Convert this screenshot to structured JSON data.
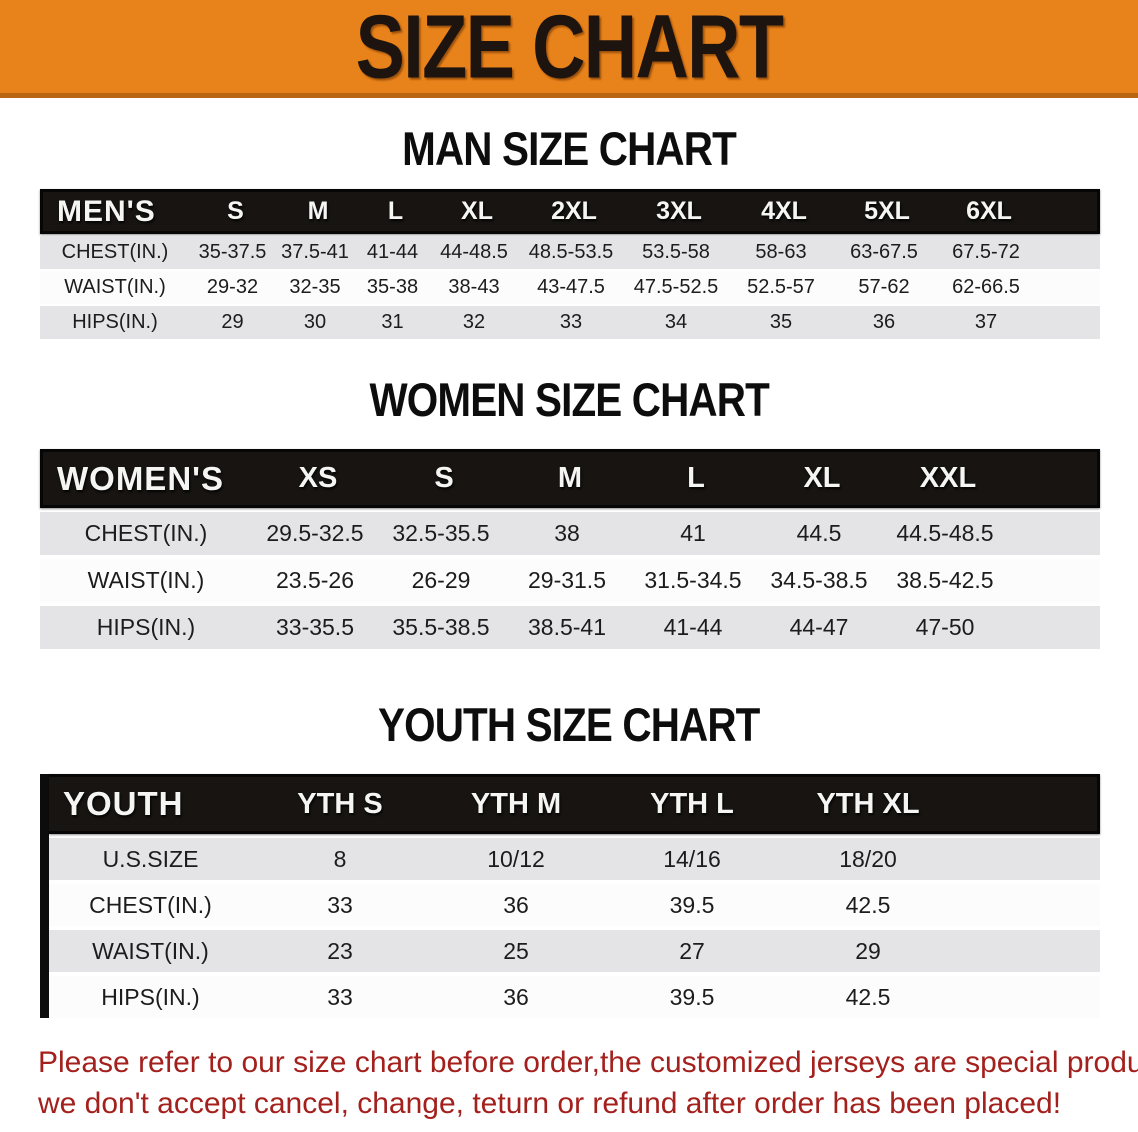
{
  "banner": {
    "title": "SIZE CHART"
  },
  "colors": {
    "banner_bg": "#e8821a",
    "banner_edge": "#b96512",
    "header_bar": "#171411",
    "row_stripe": "#e4e4e6",
    "disclaimer_red": "#a3201d"
  },
  "sections": [
    {
      "heading": "MAN SIZE CHART",
      "table": {
        "corner": "MEN'S",
        "columns": [
          "S",
          "M",
          "L",
          "XL",
          "2XL",
          "3XL",
          "4XL",
          "5XL",
          "6XL"
        ],
        "rows": [
          {
            "label": "CHEST(IN.)",
            "values": [
              "35-37.5",
              "37.5-41",
              "41-44",
              "44-48.5",
              "48.5-53.5",
              "53.5-58",
              "58-63",
              "63-67.5",
              "67.5-72"
            ]
          },
          {
            "label": "WAIST(IN.)",
            "values": [
              "29-32",
              "32-35",
              "35-38",
              "38-43",
              "43-47.5",
              "47.5-52.5",
              "52.5-57",
              "57-62",
              "62-66.5"
            ]
          },
          {
            "label": "HIPS(IN.)",
            "values": [
              "29",
              "30",
              "31",
              "32",
              "33",
              "34",
              "35",
              "36",
              "37"
            ]
          }
        ]
      }
    },
    {
      "heading": "WOMEN SIZE CHART",
      "table": {
        "corner": "WOMEN'S",
        "columns": [
          "XS",
          "S",
          "M",
          "L",
          "XL",
          "XXL"
        ],
        "rows": [
          {
            "label": "CHEST(IN.)",
            "values": [
              "29.5-32.5",
              "32.5-35.5",
              "38",
              "41",
              "44.5",
              "44.5-48.5"
            ]
          },
          {
            "label": "WAIST(IN.)",
            "values": [
              "23.5-26",
              "26-29",
              "29-31.5",
              "31.5-34.5",
              "34.5-38.5",
              "38.5-42.5"
            ]
          },
          {
            "label": "HIPS(IN.)",
            "values": [
              "33-35.5",
              "35.5-38.5",
              "38.5-41",
              "41-44",
              "44-47",
              "47-50"
            ]
          }
        ]
      }
    },
    {
      "heading": "YOUTH SIZE CHART",
      "table": {
        "corner": "YOUTH",
        "columns": [
          "YTH S",
          "YTH M",
          "YTH L",
          "YTH XL"
        ],
        "rows": [
          {
            "label": "U.S.SIZE",
            "values": [
              "8",
              "10/12",
              "14/16",
              "18/20"
            ]
          },
          {
            "label": "CHEST(IN.)",
            "values": [
              "33",
              "36",
              "39.5",
              "42.5"
            ]
          },
          {
            "label": "WAIST(IN.)",
            "values": [
              "23",
              "25",
              "27",
              "29"
            ]
          },
          {
            "label": "HIPS(IN.)",
            "values": [
              "33",
              "36",
              "39.5",
              "42.5"
            ]
          }
        ]
      }
    }
  ],
  "disclaimer": {
    "line1": "Please refer to our size chart before order,the customized jerseys are special products,",
    "line2": "we don't accept cancel, change, teturn or refund after order has been placed!"
  }
}
